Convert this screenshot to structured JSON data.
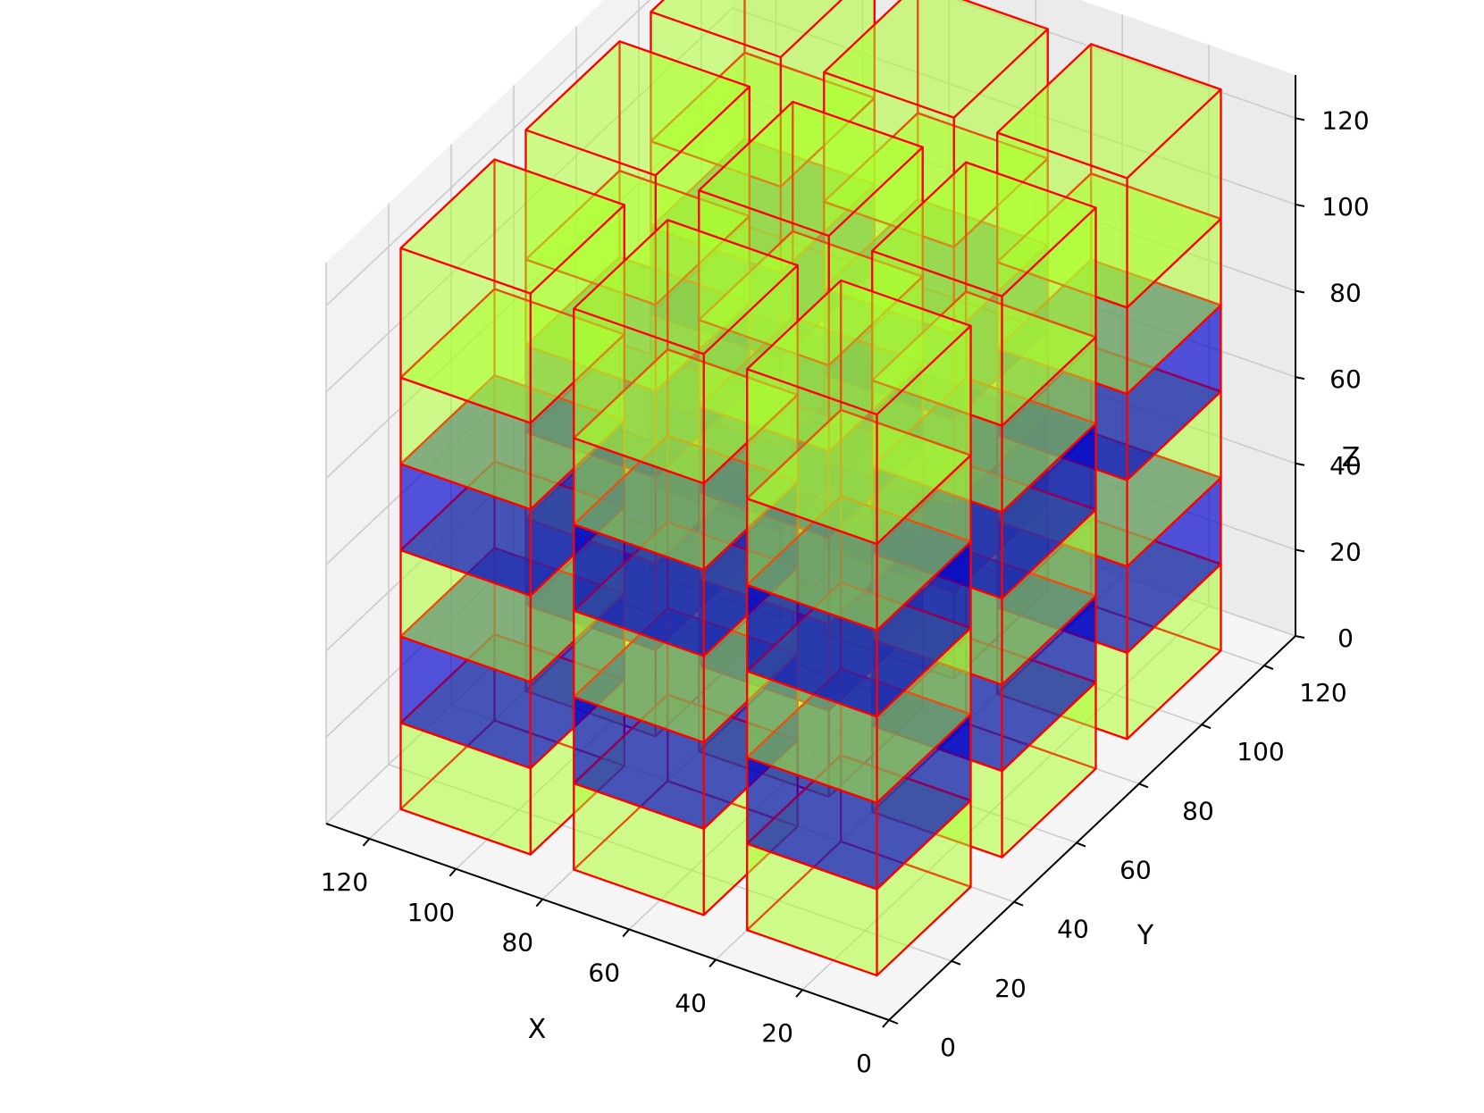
{
  "chart_data": {
    "type": "3d-voxel",
    "title": "",
    "xlabel": "X",
    "ylabel": "Y",
    "zlabel": "Z",
    "xlim": [
      0,
      130
    ],
    "ylim": [
      0,
      130
    ],
    "zlim": [
      0,
      130
    ],
    "xticks": [
      "0",
      "20",
      "40",
      "60",
      "80",
      "100",
      "120"
    ],
    "yticks": [
      "0",
      "20",
      "40",
      "60",
      "80",
      "100",
      "120"
    ],
    "zticks": [
      "0",
      "20",
      "40",
      "60",
      "80",
      "100",
      "120"
    ],
    "grid": true,
    "colors": {
      "green_face": "#adff2f",
      "blue_face": "#0000cd",
      "edge": "#ff0000",
      "pane": "#f2f2f2",
      "grid": "#cbcbcb"
    },
    "columns": [
      {
        "x": [
          10,
          40
        ],
        "y": [
          10,
          40
        ]
      },
      {
        "x": [
          50,
          80
        ],
        "y": [
          10,
          40
        ]
      },
      {
        "x": [
          90,
          120
        ],
        "y": [
          10,
          40
        ]
      },
      {
        "x": [
          10,
          40
        ],
        "y": [
          50,
          80
        ]
      },
      {
        "x": [
          50,
          80
        ],
        "y": [
          50,
          80
        ]
      },
      {
        "x": [
          90,
          120
        ],
        "y": [
          50,
          80
        ]
      },
      {
        "x": [
          10,
          40
        ],
        "y": [
          90,
          120
        ]
      },
      {
        "x": [
          50,
          80
        ],
        "y": [
          90,
          120
        ]
      },
      {
        "x": [
          90,
          120
        ],
        "y": [
          90,
          120
        ]
      }
    ],
    "layers": [
      {
        "z": [
          0,
          20
        ],
        "color": "green"
      },
      {
        "z": [
          20,
          40
        ],
        "color": "blue"
      },
      {
        "z": [
          40,
          60
        ],
        "color": "green"
      },
      {
        "z": [
          60,
          80
        ],
        "color": "blue"
      },
      {
        "z": [
          80,
          100
        ],
        "color": "green"
      },
      {
        "z": [
          100,
          130
        ],
        "color": "green"
      }
    ]
  }
}
